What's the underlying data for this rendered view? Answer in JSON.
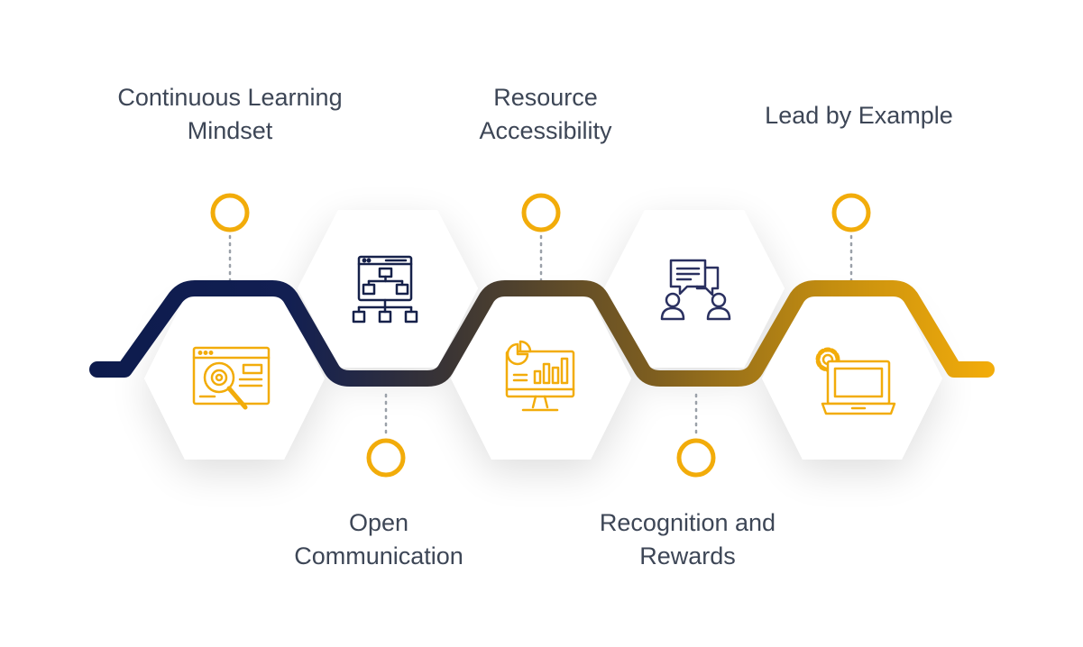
{
  "colors": {
    "navy": "#0d1b4d",
    "gold": "#f2ac0a",
    "label": "#3d4656",
    "dots": "#9aa0a8",
    "hexagon": "#ffffff"
  },
  "steps": [
    {
      "line1": "Continuous Learning",
      "line2": "Mindset",
      "icon": "web-search-settings-icon"
    },
    {
      "line1": "Open",
      "line2": "Communication",
      "icon": "sitemap-icon"
    },
    {
      "line1": "Resource",
      "line2": "Accessibility",
      "icon": "analytics-monitor-icon"
    },
    {
      "line1": "Recognition and",
      "line2": "Rewards",
      "icon": "chat-people-icon"
    },
    {
      "line1": "Lead by Example",
      "line2": "",
      "icon": "laptop-settings-icon"
    }
  ]
}
